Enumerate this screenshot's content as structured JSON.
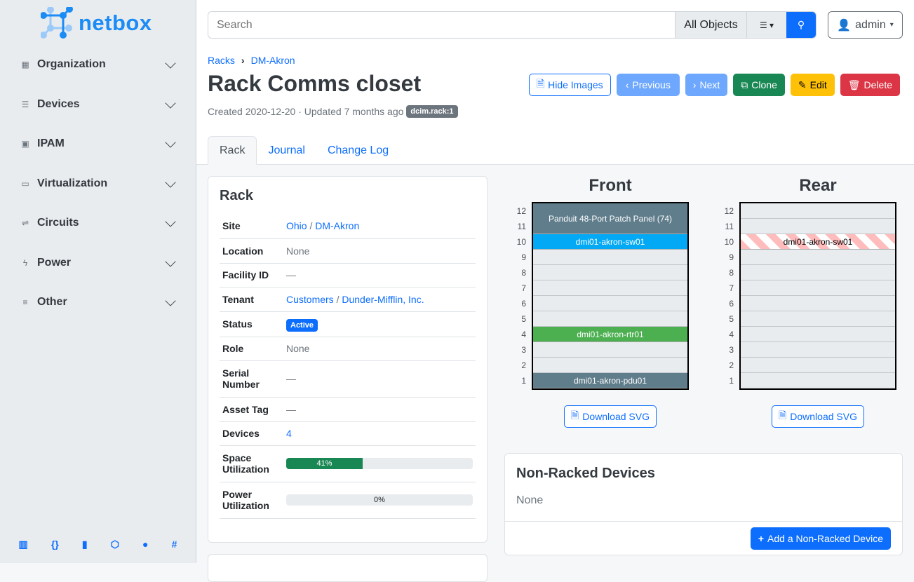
{
  "brand": "netbox",
  "sidebar": {
    "items": [
      {
        "label": "Organization",
        "icon": "building-icon"
      },
      {
        "label": "Devices",
        "icon": "server-icon"
      },
      {
        "label": "IPAM",
        "icon": "counter-icon"
      },
      {
        "label": "Virtualization",
        "icon": "monitor-icon"
      },
      {
        "label": "Circuits",
        "icon": "transit-icon"
      },
      {
        "label": "Power",
        "icon": "flash-icon"
      },
      {
        "label": "Other",
        "icon": "notes-icon"
      }
    ],
    "footer_icons": [
      "book-icon",
      "api-icon",
      "bookmark-icon",
      "graphql-icon",
      "github-icon",
      "slack-icon"
    ]
  },
  "search": {
    "placeholder": "Search",
    "scope": "All Objects"
  },
  "user": {
    "name": "admin"
  },
  "breadcrumb": [
    "Racks",
    "DM-Akron"
  ],
  "title": "Rack Comms closet",
  "meta": {
    "created": "Created 2020-12-20 · Updated 7 months ago",
    "badge": "dcim.rack:1"
  },
  "buttons": {
    "hide_images": "Hide Images",
    "previous": "Previous",
    "next": "Next",
    "clone": "Clone",
    "edit": "Edit",
    "delete": "Delete"
  },
  "tabs": [
    "Rack",
    "Journal",
    "Change Log"
  ],
  "rack_card": {
    "title": "Rack",
    "rows": {
      "site_label": "Site",
      "site_region": "Ohio",
      "site_sep": "/",
      "site": "DM-Akron",
      "location_label": "Location",
      "location": "None",
      "facility_label": "Facility ID",
      "facility": "—",
      "tenant_label": "Tenant",
      "tenant_group": "Customers",
      "tenant_sep": "/",
      "tenant": "Dunder-Mifflin, Inc.",
      "status_label": "Status",
      "status": "Active",
      "role_label": "Role",
      "role": "None",
      "serial_label": "Serial Number",
      "serial": "—",
      "asset_label": "Asset Tag",
      "asset": "—",
      "devices_label": "Devices",
      "devices": "4",
      "space_label": "Space Utilization",
      "space": "41%",
      "space_value": 41,
      "power_label": "Power Utilization",
      "power": "0%",
      "power_value": 0
    }
  },
  "elevations": {
    "front": {
      "title": "Front",
      "devices": [
        {
          "name": "Panduit 48-Port Patch Panel (74)",
          "top": 12,
          "height": 2,
          "color": "#607d8b"
        },
        {
          "name": "dmi01-akron-sw01",
          "top": 10,
          "height": 1,
          "color": "#03a9f4"
        },
        {
          "name": "dmi01-akron-rtr01",
          "top": 4,
          "height": 1,
          "color": "#4caf50"
        },
        {
          "name": "dmi01-akron-pdu01",
          "top": 1,
          "height": 1,
          "color": "#607d8b"
        }
      ]
    },
    "rear": {
      "title": "Rear",
      "devices": [
        {
          "name": "dmi01-akron-sw01",
          "top": 10,
          "height": 1,
          "color": "stripe"
        }
      ]
    },
    "units": [
      12,
      11,
      10,
      9,
      8,
      7,
      6,
      5,
      4,
      3,
      2,
      1
    ],
    "download": "Download SVG"
  },
  "non_racked": {
    "title": "Non-Racked Devices",
    "value": "None",
    "add": "Add a Non-Racked Device"
  }
}
